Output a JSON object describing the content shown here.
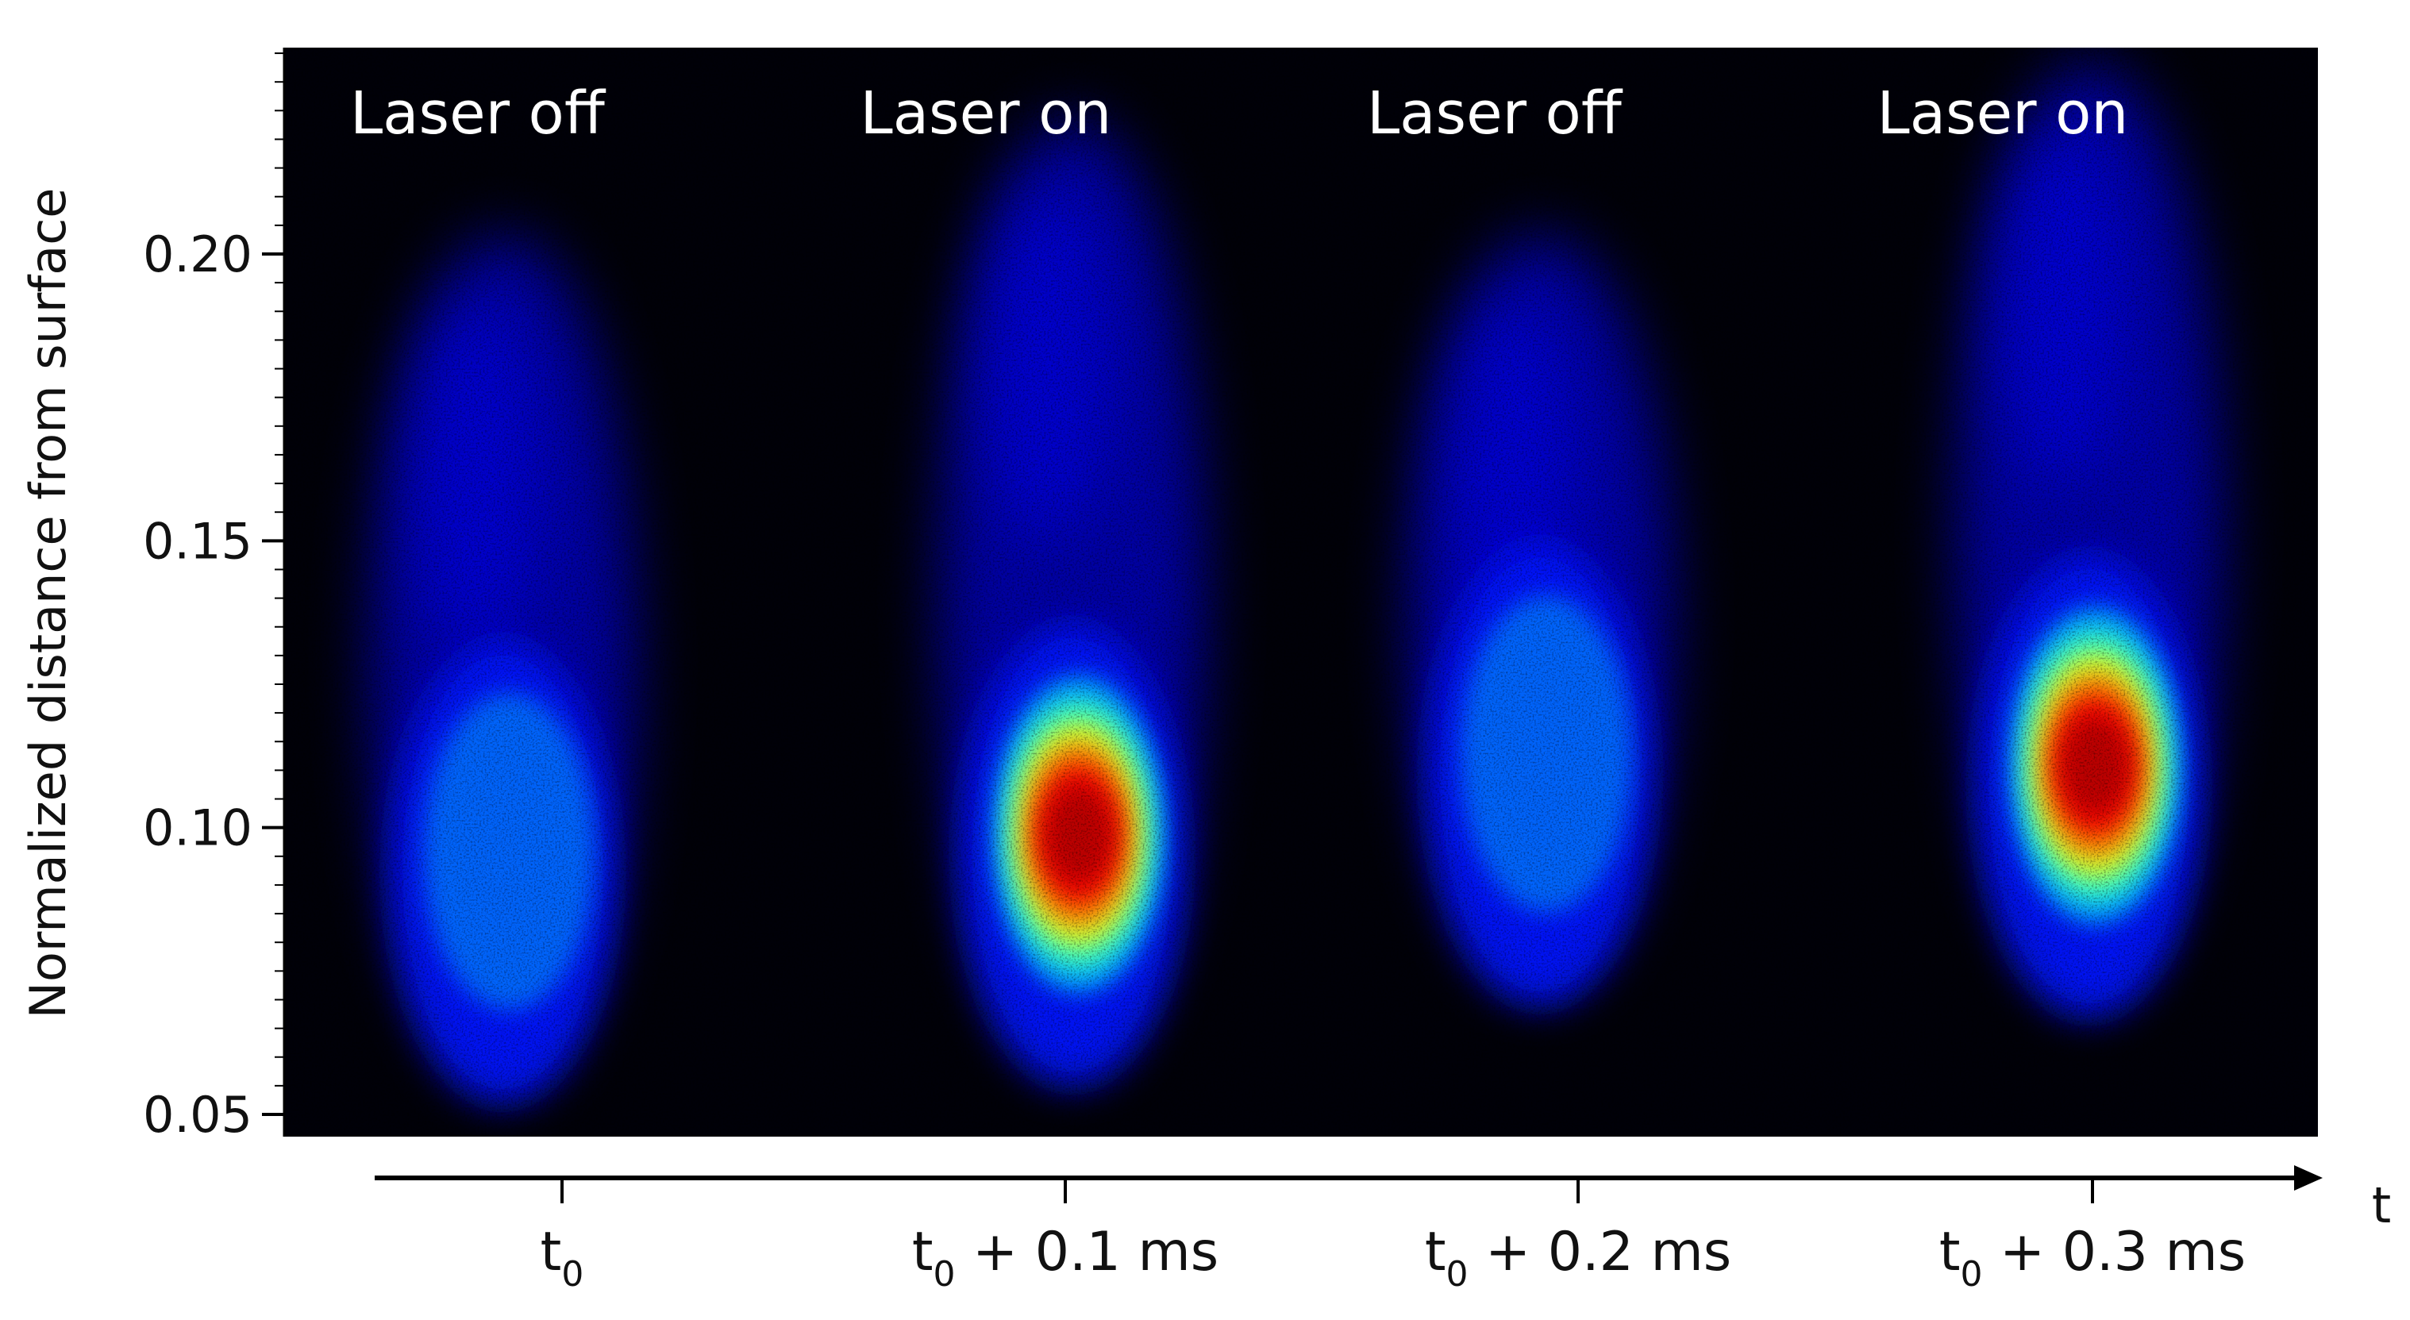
{
  "chart_data": {
    "type": "heatmap",
    "ylabel": "Normalized distance from surface",
    "ylim": [
      0.05,
      0.24
    ],
    "yticks": [
      0.05,
      0.1,
      0.15,
      0.2
    ],
    "ytick_labels": [
      "0.05",
      "0.10",
      "0.15",
      "0.20"
    ],
    "colormap": "jet",
    "background_color": "#000000",
    "time_axis": {
      "label": "t",
      "ticks": [
        {
          "base": "t",
          "sub": "0",
          "suffix": ""
        },
        {
          "base": "t",
          "sub": "0",
          "suffix": " + 0.1 ms"
        },
        {
          "base": "t",
          "sub": "0",
          "suffix": " + 0.2 ms"
        },
        {
          "base": "t",
          "sub": "0",
          "suffix": " + 0.3 ms"
        }
      ]
    },
    "panels": [
      {
        "label": "Laser off",
        "peak_height": 0.095,
        "peak_intensity": 0.35,
        "plume_top": 0.18
      },
      {
        "label": "Laser on",
        "peak_height": 0.098,
        "peak_intensity": 1.0,
        "plume_top": 0.2
      },
      {
        "label": "Laser off",
        "peak_height": 0.112,
        "peak_intensity": 0.4,
        "plume_top": 0.18
      },
      {
        "label": "Laser on",
        "peak_height": 0.11,
        "peak_intensity": 1.0,
        "plume_top": 0.21
      }
    ]
  }
}
